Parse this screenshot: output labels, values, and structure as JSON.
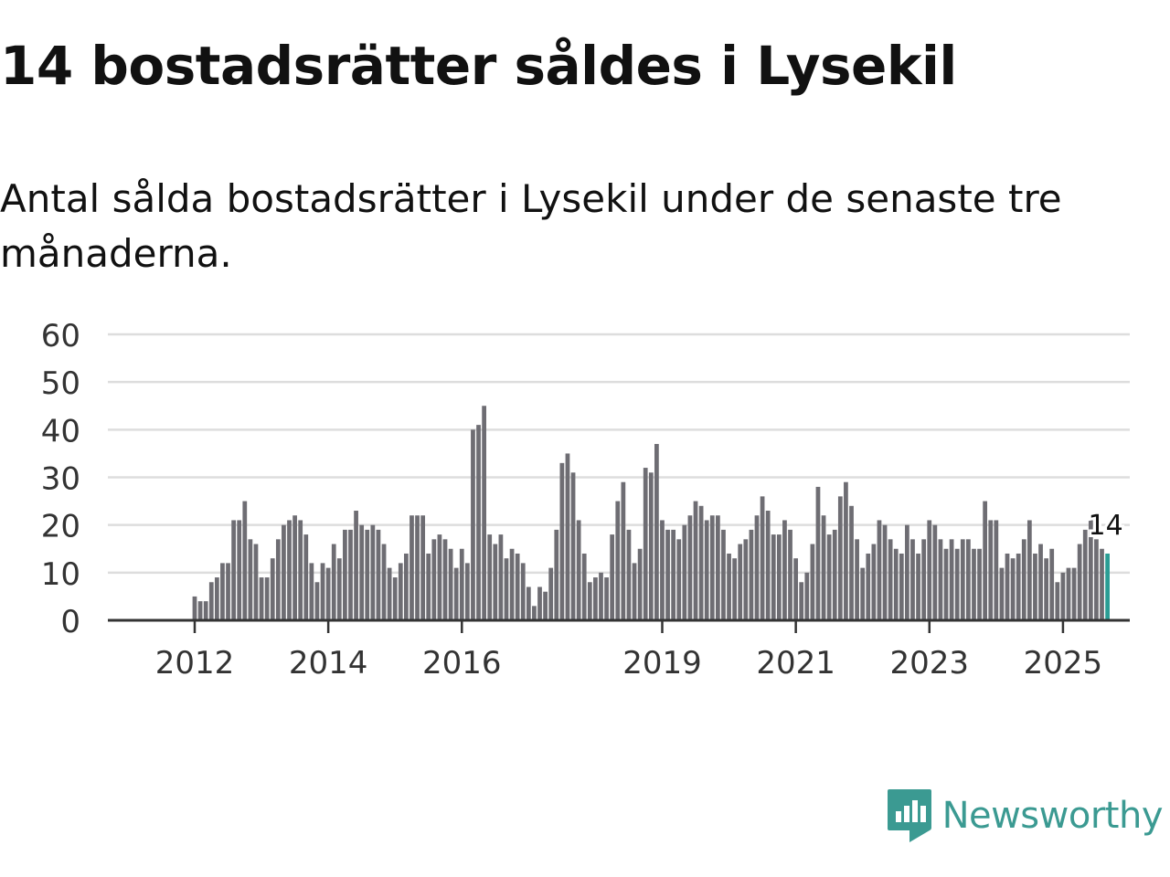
{
  "header": {
    "title": "14 bostadsrätter såldes i Lysekil",
    "subtitle": "Antal sålda bostadsrätter i Lysekil under de senaste tre månaderna."
  },
  "brand": {
    "name": "Newsworthy",
    "icon": "newsworthy-logo-icon",
    "color": "#3b9a92"
  },
  "chart_data": {
    "type": "bar",
    "title": "14 bostadsrätter såldes i Lysekil",
    "subtitle": "Antal sålda bostadsrätter i Lysekil under de senaste tre månaderna.",
    "xlabel": "",
    "ylabel": "",
    "ylim": [
      0,
      60
    ],
    "yticks": [
      "0",
      "10",
      "20",
      "30",
      "40",
      "50",
      "60"
    ],
    "grid": true,
    "x_start": 2012.0,
    "x_step": 0.08333,
    "x_range": [
      2010.7,
      2026.0
    ],
    "xticks": [
      {
        "year": 2012,
        "label": "2012"
      },
      {
        "year": 2014,
        "label": "2014"
      },
      {
        "year": 2016,
        "label": "2016"
      },
      {
        "year": 2019,
        "label": "2019"
      },
      {
        "year": 2021,
        "label": "2021"
      },
      {
        "year": 2023,
        "label": "2023"
      },
      {
        "year": 2025,
        "label": "2025"
      }
    ],
    "values": [
      5,
      4,
      4,
      8,
      9,
      12,
      12,
      21,
      21,
      25,
      17,
      16,
      9,
      9,
      13,
      17,
      20,
      21,
      22,
      21,
      18,
      12,
      8,
      12,
      11,
      16,
      13,
      19,
      19,
      23,
      20,
      19,
      20,
      19,
      16,
      11,
      9,
      12,
      14,
      22,
      22,
      22,
      14,
      17,
      18,
      17,
      15,
      11,
      15,
      12,
      40,
      41,
      45,
      18,
      16,
      18,
      13,
      15,
      14,
      12,
      7,
      3,
      7,
      6,
      11,
      19,
      33,
      35,
      31,
      21,
      14,
      8,
      9,
      10,
      9,
      18,
      25,
      29,
      19,
      12,
      15,
      32,
      31,
      37,
      21,
      19,
      19,
      17,
      20,
      22,
      25,
      24,
      21,
      22,
      22,
      19,
      14,
      13,
      16,
      17,
      19,
      22,
      26,
      23,
      18,
      18,
      21,
      19,
      13,
      8,
      10,
      16,
      28,
      22,
      18,
      19,
      26,
      29,
      24,
      17,
      11,
      14,
      16,
      21,
      20,
      17,
      15,
      14,
      20,
      17,
      14,
      17,
      21,
      20,
      17,
      15,
      17,
      15,
      17,
      17,
      15,
      15,
      25,
      21,
      21,
      11,
      14,
      13,
      14,
      17,
      21,
      14,
      16,
      13,
      15,
      8,
      10,
      11,
      11,
      16,
      19,
      21,
      17,
      15,
      14
    ],
    "bar_color": "#6e6d73",
    "highlight_color": "#2a9d94",
    "highlight_label": "14",
    "axis_color": "#333333",
    "grid_color": "#dddddd"
  }
}
